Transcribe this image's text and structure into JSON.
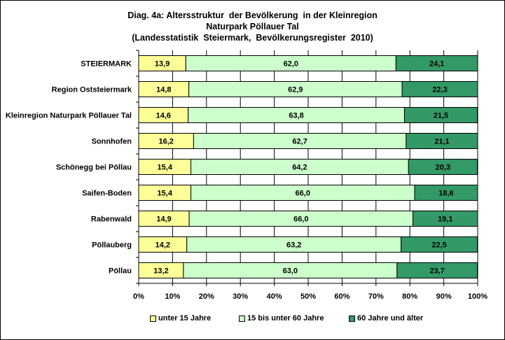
{
  "chart_data": {
    "type": "bar",
    "orientation": "horizontal",
    "stacked": true,
    "title_lines": [
      "Diag. 4a: Altersstruktur  der Bevölkerung  in der Kleinregion",
      "Naturpark Pöllauer Tal",
      "(Landesstatistik  Steiermark,  Bevölkerungsregister  2010)"
    ],
    "categories": [
      "STEIERMARK",
      "Region Oststeiermark",
      "Kleinregion Naturpark Pöllauer Tal",
      "Sonnhofen",
      "Schönegg bei Pöllau",
      "Saifen-Boden",
      "Rabenwald",
      "Pöllauberg",
      "Pöllau"
    ],
    "series": [
      {
        "name": "unter 15 Jahre",
        "color": "#ffff99",
        "values": [
          13.9,
          14.8,
          14.6,
          16.2,
          15.4,
          15.4,
          14.9,
          14.2,
          13.2
        ],
        "labels": [
          "13,9",
          "14,8",
          "14,6",
          "16,2",
          "15,4",
          "15,4",
          "14,9",
          "14,2",
          "13,2"
        ]
      },
      {
        "name": "15 bis unter 60 Jahre",
        "color": "#ccffcc",
        "values": [
          62.0,
          62.9,
          63.8,
          62.7,
          64.2,
          66.0,
          66.0,
          63.2,
          63.0
        ],
        "labels": [
          "62,0",
          "62,9",
          "63,8",
          "62,7",
          "64,2",
          "66,0",
          "66,0",
          "63,2",
          "63,0"
        ]
      },
      {
        "name": "60 Jahre und älter",
        "color": "#339966",
        "values": [
          24.1,
          22.3,
          21.5,
          21.1,
          20.3,
          18.6,
          19.1,
          22.5,
          23.7
        ],
        "labels": [
          "24,1",
          "22,3",
          "21,5",
          "21,1",
          "20,3",
          "18,6",
          "19,1",
          "22,5",
          "23,7"
        ]
      }
    ],
    "x_ticks": [
      "0%",
      "10%",
      "20%",
      "30%",
      "40%",
      "50%",
      "60%",
      "70%",
      "80%",
      "90%",
      "100%"
    ],
    "xlim": [
      0,
      100
    ],
    "grid": "vertical",
    "legend_position": "bottom"
  }
}
